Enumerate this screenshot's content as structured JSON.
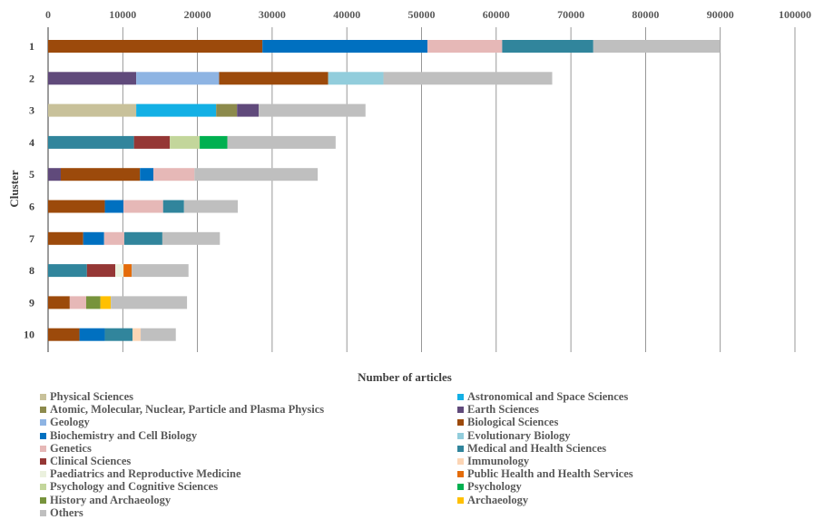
{
  "chart_data": {
    "type": "bar",
    "orientation": "horizontal",
    "stacked": true,
    "xlabel": "Number of articles",
    "ylabel": "Cluster",
    "xlim": [
      0,
      100000
    ],
    "xticks": [
      "0",
      "10000",
      "20000",
      "30000",
      "40000",
      "50000",
      "60000",
      "70000",
      "80000",
      "90000",
      "100000"
    ],
    "x_axis_position": "top",
    "grid": "vertical",
    "legend_position": "bottom",
    "categories": [
      "1",
      "2",
      "3",
      "4",
      "5",
      "6",
      "7",
      "8",
      "9",
      "10"
    ],
    "legend": [
      {
        "name": "Physical Sciences",
        "color": "#c8c19a"
      },
      {
        "name": "Astronomical and Space Sciences",
        "color": "#13b0e5"
      },
      {
        "name": "Atomic, Molecular, Nuclear, Particle and Plasma Physics",
        "color": "#8c8a4c"
      },
      {
        "name": "Earth Sciences",
        "color": "#604a7b"
      },
      {
        "name": "Geology",
        "color": "#8eb4e3"
      },
      {
        "name": "Biological Sciences",
        "color": "#9c4a0b"
      },
      {
        "name": "Biochemistry and Cell Biology",
        "color": "#0070c0"
      },
      {
        "name": "Evolutionary Biology",
        "color": "#92cddc"
      },
      {
        "name": "Genetics",
        "color": "#e6b8b7"
      },
      {
        "name": "Medical and Health Sciences",
        "color": "#31859c"
      },
      {
        "name": "Clinical Sciences",
        "color": "#953735"
      },
      {
        "name": "Immunology",
        "color": "#fcd5b5"
      },
      {
        "name": "Paediatrics and Reproductive Medicine",
        "color": "#ebf1de"
      },
      {
        "name": "Public Health and Health Services",
        "color": "#e46c0a"
      },
      {
        "name": "Psychology and Cognitive Sciences",
        "color": "#c3d69b"
      },
      {
        "name": "Psychology",
        "color": "#00b050"
      },
      {
        "name": "History and Archaeology",
        "color": "#77933c"
      },
      {
        "name": "Archaeology",
        "color": "#ffc000"
      },
      {
        "name": "Others",
        "color": "#bfbfbf"
      }
    ],
    "bars": [
      {
        "cluster": "1",
        "segments": [
          [
            "Biological Sciences",
            28700
          ],
          [
            "Biochemistry and Cell Biology",
            22100
          ],
          [
            "Genetics",
            10000
          ],
          [
            "Medical and Health Sciences",
            12200
          ],
          [
            "Others",
            17000
          ]
        ]
      },
      {
        "cluster": "2",
        "segments": [
          [
            "Earth Sciences",
            11800
          ],
          [
            "Geology",
            11100
          ],
          [
            "Biological Sciences",
            14600
          ],
          [
            "Evolutionary Biology",
            7400
          ],
          [
            "Others",
            22600
          ]
        ]
      },
      {
        "cluster": "3",
        "segments": [
          [
            "Physical Sciences",
            11800
          ],
          [
            "Astronomical and Space Sciences",
            10700
          ],
          [
            "Atomic, Molecular, Nuclear, Particle and Plasma Physics",
            2800
          ],
          [
            "Earth Sciences",
            2900
          ],
          [
            "Others",
            14300
          ]
        ]
      },
      {
        "cluster": "4",
        "segments": [
          [
            "Medical and Health Sciences",
            11500
          ],
          [
            "Clinical Sciences",
            4800
          ],
          [
            "Psychology and Cognitive Sciences",
            4000
          ],
          [
            "Psychology",
            3700
          ],
          [
            "Others",
            14500
          ]
        ]
      },
      {
        "cluster": "5",
        "segments": [
          [
            "Earth Sciences",
            1700
          ],
          [
            "Biological Sciences",
            10600
          ],
          [
            "Biochemistry and Cell Biology",
            1800
          ],
          [
            "Genetics",
            5500
          ],
          [
            "Others",
            16500
          ]
        ]
      },
      {
        "cluster": "6",
        "segments": [
          [
            "Biological Sciences",
            7600
          ],
          [
            "Biochemistry and Cell Biology",
            2500
          ],
          [
            "Genetics",
            5300
          ],
          [
            "Medical and Health Sciences",
            2800
          ],
          [
            "Others",
            7200
          ]
        ]
      },
      {
        "cluster": "7",
        "segments": [
          [
            "Biological Sciences",
            4700
          ],
          [
            "Biochemistry and Cell Biology",
            2800
          ],
          [
            "Genetics",
            2700
          ],
          [
            "Medical and Health Sciences",
            5100
          ],
          [
            "Others",
            7700
          ]
        ]
      },
      {
        "cluster": "8",
        "segments": [
          [
            "Medical and Health Sciences",
            5200
          ],
          [
            "Clinical Sciences",
            3800
          ],
          [
            "Paediatrics and Reproductive Medicine",
            1100
          ],
          [
            "Public Health and Health Services",
            1100
          ],
          [
            "Others",
            7600
          ]
        ]
      },
      {
        "cluster": "9",
        "segments": [
          [
            "Biological Sciences",
            2900
          ],
          [
            "Genetics",
            2200
          ],
          [
            "History and Archaeology",
            1900
          ],
          [
            "Archaeology",
            1400
          ],
          [
            "Others",
            10200
          ]
        ]
      },
      {
        "cluster": "10",
        "segments": [
          [
            "Biological Sciences",
            4200
          ],
          [
            "Biochemistry and Cell Biology",
            3400
          ],
          [
            "Medical and Health Sciences",
            3700
          ],
          [
            "Immunology",
            1100
          ],
          [
            "Others",
            4700
          ]
        ]
      }
    ]
  }
}
